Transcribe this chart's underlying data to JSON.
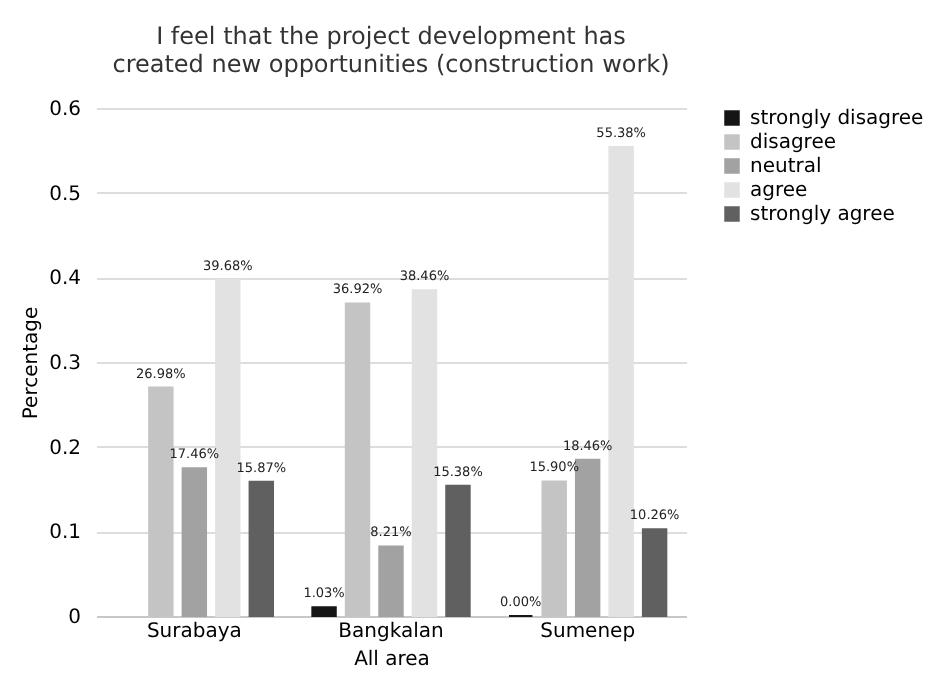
{
  "chart_data": {
    "type": "bar",
    "title": "I feel that the project development has created new opportunities (construction work)",
    "xlabel": "All area",
    "ylabel": "Percentage",
    "categories": [
      "Surabaya",
      "Bangkalan",
      "Sumenep"
    ],
    "series": [
      {
        "name": "strongly disagree",
        "color": "#151515",
        "values": [
          null,
          0.0103,
          0.0
        ],
        "value_labels": [
          null,
          "1.03%",
          "0.00%"
        ]
      },
      {
        "name": "disagree",
        "color": "#c4c4c4",
        "values": [
          0.2698,
          0.3692,
          0.159
        ],
        "value_labels": [
          "26.98%",
          "36.92%",
          "15.90%"
        ]
      },
      {
        "name": "neutral",
        "color": "#a2a2a2",
        "values": [
          0.1746,
          0.0821,
          0.1846
        ],
        "value_labels": [
          "17.46%",
          "8.21%",
          "18.46%"
        ]
      },
      {
        "name": "agree",
        "color": "#e2e2e2",
        "values": [
          0.3968,
          0.3846,
          0.5538
        ],
        "value_labels": [
          "39.68%",
          "38.46%",
          "55.38%"
        ]
      },
      {
        "name": "strongly agree",
        "color": "#606060",
        "values": [
          0.1587,
          0.1538,
          0.1026
        ],
        "value_labels": [
          "15.87%",
          "15.38%",
          "10.26%"
        ]
      }
    ],
    "ylim": [
      0,
      0.6
    ],
    "yticks": [
      0,
      0.1,
      0.2,
      0.3,
      0.4,
      0.5,
      0.6
    ],
    "grid": "y",
    "legend": "right"
  }
}
